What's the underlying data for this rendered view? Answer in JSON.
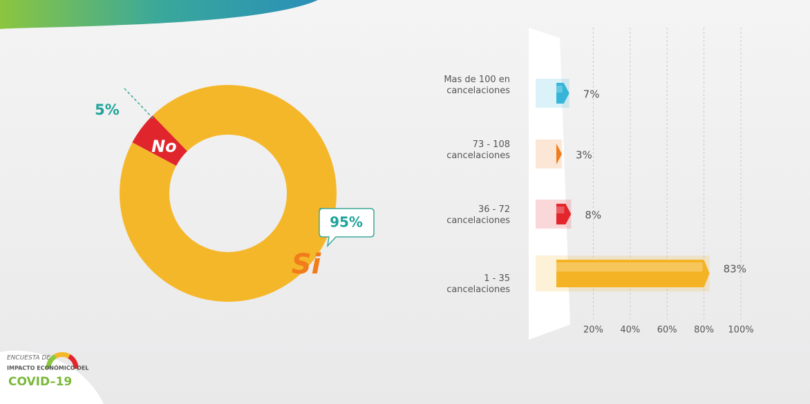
{
  "chart_data": [
    {
      "type": "donut",
      "categories": [
        "No",
        "Si"
      ],
      "values": [
        5,
        95
      ],
      "value_labels": [
        "5%",
        "95%"
      ],
      "colors": [
        "#e0262c",
        "#f5b72a"
      ]
    },
    {
      "type": "bar",
      "orientation": "horizontal",
      "categories": [
        "Mas de 100 en cancelaciones",
        "73 - 108 cancelaciones",
        "36 - 72 cancelaciones",
        "1 - 35 cancelaciones"
      ],
      "values": [
        7,
        3,
        8,
        83
      ],
      "value_labels": [
        "7%",
        "3%",
        "8%",
        "83%"
      ],
      "colors": [
        "#35b6d8",
        "#f07c1c",
        "#e2262c",
        "#f4b324"
      ],
      "xlim": [
        0,
        100
      ],
      "xticks": [
        {
          "value": 20,
          "label": "20%"
        },
        {
          "value": 40,
          "label": "40%"
        },
        {
          "value": 60,
          "label": "60%"
        },
        {
          "value": 80,
          "label": "80%"
        },
        {
          "value": 100,
          "label": "100%"
        }
      ],
      "grid": true
    }
  ],
  "logo": {
    "line1": "ENCUESTA DE",
    "line2": "IMPACTO ECONÓMICO DEL",
    "line3": "COVID–19"
  }
}
